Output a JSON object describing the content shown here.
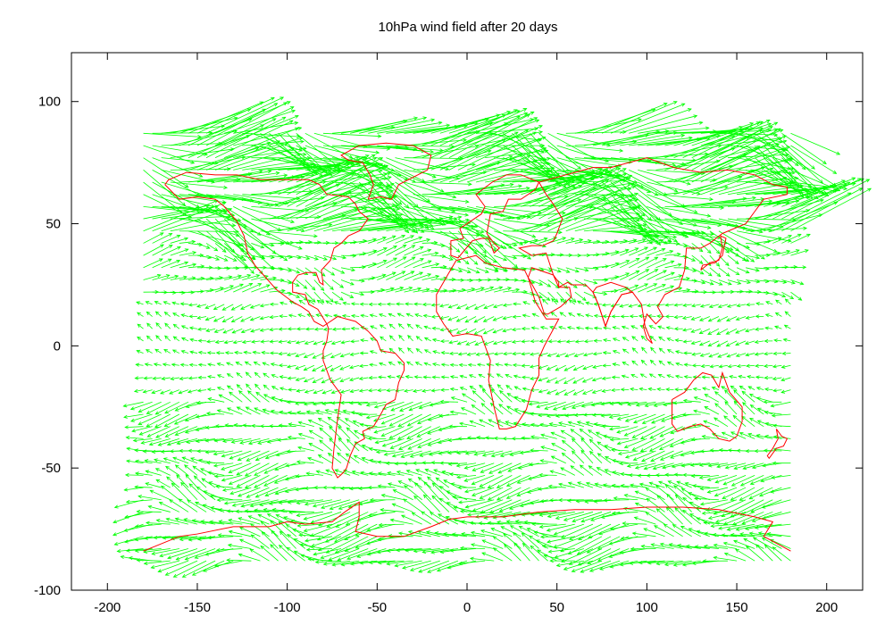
{
  "chart_data": {
    "type": "vector-field",
    "title": "10hPa wind field after 20 days",
    "xlabel": "",
    "ylabel": "",
    "xlim": [
      -220,
      220
    ],
    "ylim": [
      -100,
      120
    ],
    "x_ticks": [
      -200,
      -150,
      -100,
      -50,
      0,
      50,
      100,
      150,
      200
    ],
    "y_ticks": [
      -100,
      -50,
      0,
      50,
      100
    ],
    "grid": false,
    "legend": "none",
    "colors": {
      "vectors": "#00ff00",
      "coastlines": "#ff0000",
      "axes": "#000000"
    },
    "grid_spacing_deg": {
      "lon": 5,
      "lat": 5
    },
    "vector_field_regions": [
      {
        "name": "polar-vortex-strong-jet",
        "lon_range": [
          -180,
          180
        ],
        "lat_range": [
          45,
          90
        ],
        "u": 60,
        "v": 0
      },
      {
        "name": "midlatitude-north",
        "lon_range": [
          -180,
          180
        ],
        "lat_range": [
          20,
          45
        ],
        "u": 15,
        "v": 0
      },
      {
        "name": "tropics",
        "lon_range": [
          -180,
          180
        ],
        "lat_range": [
          -20,
          20
        ],
        "u": -8,
        "v": 0
      },
      {
        "name": "southern-midlatitudes",
        "lon_range": [
          -180,
          180
        ],
        "lat_range": [
          -60,
          -20
        ],
        "u": -18,
        "v": 0
      },
      {
        "name": "southern-polar",
        "lon_range": [
          -180,
          180
        ],
        "lat_range": [
          -90,
          -60
        ],
        "u": -25,
        "v": 0
      }
    ],
    "coastlines": [
      {
        "name": "north-america",
        "points": [
          [
            -168,
            66
          ],
          [
            -160,
            60
          ],
          [
            -150,
            61
          ],
          [
            -140,
            60
          ],
          [
            -135,
            57
          ],
          [
            -128,
            51
          ],
          [
            -124,
            45
          ],
          [
            -122,
            38
          ],
          [
            -118,
            33
          ],
          [
            -112,
            28
          ],
          [
            -106,
            23
          ],
          [
            -97,
            18
          ],
          [
            -92,
            16
          ],
          [
            -88,
            14
          ],
          [
            -85,
            10
          ],
          [
            -80,
            8
          ],
          [
            -78,
            9
          ],
          [
            -83,
            15
          ],
          [
            -88,
            17
          ],
          [
            -90,
            21
          ],
          [
            -97,
            22
          ],
          [
            -97,
            26
          ],
          [
            -94,
            29
          ],
          [
            -89,
            30
          ],
          [
            -84,
            30
          ],
          [
            -82,
            26
          ],
          [
            -80,
            25
          ],
          [
            -81,
            31
          ],
          [
            -76,
            35
          ],
          [
            -74,
            40
          ],
          [
            -70,
            42
          ],
          [
            -66,
            45
          ],
          [
            -60,
            47
          ],
          [
            -55,
            52
          ],
          [
            -60,
            55
          ],
          [
            -62,
            58
          ],
          [
            -66,
            61
          ],
          [
            -78,
            62
          ],
          [
            -82,
            66
          ],
          [
            -88,
            68
          ],
          [
            -100,
            68
          ],
          [
            -115,
            68
          ],
          [
            -128,
            70
          ],
          [
            -140,
            70
          ],
          [
            -156,
            71
          ],
          [
            -166,
            68
          ],
          [
            -168,
            66
          ]
        ]
      },
      {
        "name": "greenland",
        "points": [
          [
            -55,
            60
          ],
          [
            -48,
            61
          ],
          [
            -42,
            60
          ],
          [
            -38,
            66
          ],
          [
            -30,
            69
          ],
          [
            -22,
            72
          ],
          [
            -20,
            78
          ],
          [
            -30,
            82
          ],
          [
            -45,
            83
          ],
          [
            -60,
            82
          ],
          [
            -70,
            78
          ],
          [
            -66,
            76
          ],
          [
            -58,
            75
          ],
          [
            -54,
            70
          ],
          [
            -52,
            66
          ],
          [
            -55,
            60
          ]
        ]
      },
      {
        "name": "south-america",
        "points": [
          [
            -78,
            9
          ],
          [
            -72,
            12
          ],
          [
            -62,
            10
          ],
          [
            -55,
            6
          ],
          [
            -50,
            2
          ],
          [
            -48,
            -2
          ],
          [
            -40,
            -3
          ],
          [
            -35,
            -7
          ],
          [
            -35,
            -10
          ],
          [
            -38,
            -15
          ],
          [
            -40,
            -22
          ],
          [
            -45,
            -24
          ],
          [
            -48,
            -28
          ],
          [
            -52,
            -33
          ],
          [
            -58,
            -35
          ],
          [
            -57,
            -38
          ],
          [
            -62,
            -40
          ],
          [
            -65,
            -45
          ],
          [
            -67,
            -50
          ],
          [
            -69,
            -52
          ],
          [
            -72,
            -54
          ],
          [
            -75,
            -50
          ],
          [
            -74,
            -42
          ],
          [
            -72,
            -30
          ],
          [
            -70,
            -20
          ],
          [
            -76,
            -14
          ],
          [
            -80,
            -6
          ],
          [
            -80,
            -2
          ],
          [
            -78,
            2
          ],
          [
            -77,
            7
          ],
          [
            -78,
            9
          ]
        ]
      },
      {
        "name": "europe",
        "points": [
          [
            -9,
            37
          ],
          [
            -9,
            43
          ],
          [
            -2,
            44
          ],
          [
            -4,
            48
          ],
          [
            2,
            51
          ],
          [
            8,
            54
          ],
          [
            10,
            57
          ],
          [
            5,
            62
          ],
          [
            14,
            67
          ],
          [
            22,
            70
          ],
          [
            30,
            70
          ],
          [
            40,
            67
          ],
          [
            38,
            64
          ],
          [
            30,
            60
          ],
          [
            23,
            60
          ],
          [
            20,
            55
          ],
          [
            13,
            54
          ],
          [
            11,
            46
          ],
          [
            15,
            42
          ],
          [
            18,
            40
          ],
          [
            15,
            38
          ],
          [
            12,
            44
          ],
          [
            8,
            44
          ],
          [
            3,
            43
          ],
          [
            -5,
            36
          ],
          [
            -9,
            37
          ]
        ]
      },
      {
        "name": "africa",
        "points": [
          [
            -6,
            35
          ],
          [
            -10,
            30
          ],
          [
            -17,
            21
          ],
          [
            -17,
            14
          ],
          [
            -13,
            9
          ],
          [
            -8,
            4
          ],
          [
            0,
            5
          ],
          [
            8,
            4
          ],
          [
            10,
            0
          ],
          [
            13,
            -6
          ],
          [
            12,
            -14
          ],
          [
            15,
            -25
          ],
          [
            18,
            -34
          ],
          [
            22,
            -34
          ],
          [
            27,
            -33
          ],
          [
            33,
            -26
          ],
          [
            36,
            -18
          ],
          [
            40,
            -12
          ],
          [
            40,
            -5
          ],
          [
            43,
            0
          ],
          [
            51,
            11
          ],
          [
            44,
            11
          ],
          [
            38,
            18
          ],
          [
            34,
            28
          ],
          [
            32,
            31
          ],
          [
            20,
            32
          ],
          [
            10,
            34
          ],
          [
            5,
            37
          ],
          [
            -6,
            35
          ]
        ]
      },
      {
        "name": "asia",
        "points": [
          [
            40,
            67
          ],
          [
            55,
            70
          ],
          [
            70,
            73
          ],
          [
            80,
            73
          ],
          [
            100,
            77
          ],
          [
            115,
            73
          ],
          [
            130,
            71
          ],
          [
            145,
            72
          ],
          [
            160,
            70
          ],
          [
            170,
            66
          ],
          [
            178,
            65
          ],
          [
            178,
            62
          ],
          [
            165,
            60
          ],
          [
            160,
            55
          ],
          [
            155,
            50
          ],
          [
            142,
            46
          ],
          [
            135,
            42
          ],
          [
            130,
            40
          ],
          [
            122,
            40
          ],
          [
            121,
            31
          ],
          [
            118,
            24
          ],
          [
            110,
            21
          ],
          [
            106,
            16
          ],
          [
            109,
            12
          ],
          [
            105,
            9
          ],
          [
            100,
            13
          ],
          [
            98,
            8
          ],
          [
            100,
            3
          ],
          [
            103,
            1
          ],
          [
            99,
            8
          ],
          [
            97,
            17
          ],
          [
            92,
            22
          ],
          [
            86,
            21
          ],
          [
            80,
            14
          ],
          [
            77,
            8
          ],
          [
            73,
            17
          ],
          [
            70,
            22
          ],
          [
            66,
            25
          ],
          [
            58,
            25
          ],
          [
            56,
            26
          ],
          [
            51,
            24
          ],
          [
            51,
            26
          ],
          [
            48,
            29
          ],
          [
            44,
            38
          ],
          [
            36,
            37
          ],
          [
            29,
            40
          ],
          [
            36,
            41
          ],
          [
            42,
            41
          ],
          [
            48,
            43
          ],
          [
            50,
            46
          ],
          [
            53,
            52
          ],
          [
            48,
            58
          ],
          [
            44,
            62
          ],
          [
            40,
            67
          ]
        ]
      },
      {
        "name": "arabia",
        "points": [
          [
            34,
            28
          ],
          [
            40,
            20
          ],
          [
            43,
            13
          ],
          [
            45,
            13
          ],
          [
            52,
            16
          ],
          [
            58,
            20
          ],
          [
            57,
            24
          ],
          [
            51,
            24
          ],
          [
            48,
            29
          ],
          [
            44,
            30
          ],
          [
            36,
            32
          ],
          [
            34,
            28
          ]
        ]
      },
      {
        "name": "india-triangle",
        "points": [
          [
            70,
            22
          ],
          [
            73,
            17
          ],
          [
            77,
            8
          ],
          [
            80,
            14
          ],
          [
            86,
            21
          ],
          [
            92,
            22
          ],
          [
            88,
            24
          ],
          [
            80,
            26
          ],
          [
            72,
            24
          ],
          [
            70,
            22
          ]
        ]
      },
      {
        "name": "australia",
        "points": [
          [
            114,
            -22
          ],
          [
            114,
            -32
          ],
          [
            117,
            -35
          ],
          [
            124,
            -33
          ],
          [
            130,
            -32
          ],
          [
            135,
            -34
          ],
          [
            140,
            -38
          ],
          [
            146,
            -39
          ],
          [
            150,
            -37
          ],
          [
            153,
            -31
          ],
          [
            153,
            -25
          ],
          [
            146,
            -19
          ],
          [
            142,
            -11
          ],
          [
            140,
            -17
          ],
          [
            136,
            -12
          ],
          [
            131,
            -11
          ],
          [
            126,
            -14
          ],
          [
            121,
            -19
          ],
          [
            114,
            -22
          ]
        ]
      },
      {
        "name": "japan",
        "points": [
          [
            130,
            31
          ],
          [
            135,
            34
          ],
          [
            140,
            35
          ],
          [
            142,
            40
          ],
          [
            141,
            45
          ],
          [
            144,
            44
          ],
          [
            142,
            37
          ],
          [
            138,
            34
          ],
          [
            131,
            33
          ],
          [
            130,
            31
          ]
        ]
      },
      {
        "name": "new-zealand",
        "points": [
          [
            172,
            -34
          ],
          [
            175,
            -37
          ],
          [
            178,
            -38
          ],
          [
            176,
            -41
          ],
          [
            172,
            -42
          ],
          [
            168,
            -46
          ],
          [
            167,
            -45
          ],
          [
            170,
            -42
          ],
          [
            173,
            -38
          ],
          [
            172,
            -34
          ]
        ]
      },
      {
        "name": "antarctica",
        "points": [
          [
            -180,
            -84
          ],
          [
            -160,
            -78
          ],
          [
            -150,
            -77
          ],
          [
            -130,
            -74
          ],
          [
            -110,
            -74
          ],
          [
            -100,
            -72
          ],
          [
            -90,
            -73
          ],
          [
            -75,
            -72
          ],
          [
            -68,
            -68
          ],
          [
            -60,
            -64
          ],
          [
            -60,
            -70
          ],
          [
            -62,
            -76
          ],
          [
            -50,
            -78
          ],
          [
            -35,
            -78
          ],
          [
            -20,
            -74
          ],
          [
            -10,
            -71
          ],
          [
            0,
            -70
          ],
          [
            20,
            -70
          ],
          [
            40,
            -68
          ],
          [
            60,
            -67
          ],
          [
            80,
            -67
          ],
          [
            100,
            -66
          ],
          [
            120,
            -66
          ],
          [
            140,
            -67
          ],
          [
            160,
            -70
          ],
          [
            170,
            -72
          ],
          [
            165,
            -78
          ],
          [
            175,
            -82
          ],
          [
            180,
            -84
          ]
        ]
      }
    ]
  }
}
